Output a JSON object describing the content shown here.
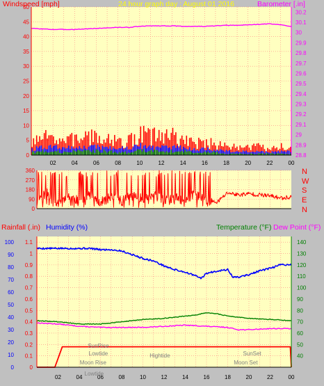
{
  "chart_data": [
    {
      "type": "line",
      "panel": "wind_barometer",
      "title": "24 hour graph day : August 01 2016",
      "left_axis_label": "Windspeed [mph]",
      "right_axis_label": "Barometer [.in]",
      "x_ticks": [
        "02",
        "04",
        "06",
        "08",
        "10",
        "12",
        "14",
        "16",
        "18",
        "20",
        "22",
        "00"
      ],
      "x_range_hours": [
        0,
        24
      ],
      "left_ylim": [
        0,
        50
      ],
      "left_ticks": [
        0,
        5,
        10,
        15,
        20,
        25,
        30,
        35,
        40,
        45,
        50
      ],
      "right_ylim": [
        28.8,
        30.25
      ],
      "right_ticks": [
        "28.8",
        "28.9",
        "29",
        "29.1",
        "29.2",
        "29.3",
        "29.4",
        "29.5",
        "29.6",
        "29.7",
        "29.8",
        "29.9",
        "30",
        "30.1",
        "30.2"
      ],
      "grid": true,
      "colors": {
        "barometer": "#ff00ff",
        "gust": "#ff0000",
        "average": "#0000ff",
        "low": "#008000",
        "plot_bg": "#ffffc0"
      },
      "series": [
        {
          "key": "barometer",
          "axis": "right",
          "x": [
            0,
            1,
            2,
            3,
            4,
            5,
            6,
            7,
            8,
            9,
            10,
            11,
            12,
            13,
            14,
            15,
            16,
            17,
            18,
            19,
            20,
            21,
            22,
            23,
            24
          ],
          "values": [
            30.04,
            30.035,
            30.03,
            30.03,
            30.03,
            30.035,
            30.04,
            30.045,
            30.05,
            30.05,
            30.06,
            30.065,
            30.065,
            30.065,
            30.06,
            30.06,
            30.06,
            30.065,
            30.07,
            30.07,
            30.075,
            30.08,
            30.085,
            30.075,
            30.06
          ]
        },
        {
          "key": "gust",
          "axis": "left",
          "x": [
            0,
            1,
            2,
            3,
            4,
            5,
            6,
            7,
            8,
            9,
            10,
            11,
            12,
            13,
            14,
            15,
            16,
            17,
            18,
            19,
            20,
            21,
            22,
            23,
            24
          ],
          "values": [
            4,
            6,
            7,
            5,
            6,
            7,
            6,
            7,
            5,
            5,
            8,
            7,
            7,
            7,
            6,
            4,
            5,
            4,
            3,
            3,
            3,
            3,
            2,
            3,
            3
          ]
        },
        {
          "key": "average",
          "axis": "left",
          "x": [
            0,
            1,
            2,
            3,
            4,
            5,
            6,
            7,
            8,
            9,
            10,
            11,
            12,
            13,
            14,
            15,
            16,
            17,
            18,
            19,
            20,
            21,
            22,
            23,
            24
          ],
          "values": [
            2,
            3,
            3,
            2.5,
            3,
            3,
            3,
            3,
            2.5,
            2.5,
            3.5,
            3,
            3,
            3,
            3,
            2,
            2.5,
            2,
            1.5,
            1.5,
            1.5,
            1.5,
            1,
            1.5,
            1.5
          ]
        },
        {
          "key": "low",
          "axis": "left",
          "x": [
            0,
            1,
            2,
            3,
            4,
            5,
            6,
            7,
            8,
            9,
            10,
            11,
            12,
            13,
            14,
            15,
            16,
            17,
            18,
            19,
            20,
            21,
            22,
            23,
            24
          ],
          "values": [
            1,
            1.5,
            1.5,
            1,
            1.5,
            1.5,
            1.5,
            1.5,
            1,
            1,
            2,
            1.5,
            1.5,
            1.5,
            1.5,
            1,
            1,
            1,
            0.5,
            0.5,
            0.5,
            0.5,
            0.5,
            0.5,
            0.5
          ]
        }
      ]
    },
    {
      "type": "line",
      "panel": "wind_direction",
      "left_ticks": [
        0,
        90,
        180,
        270,
        360
      ],
      "ylim": [
        0,
        360
      ],
      "direction_labels": [
        "N",
        "W",
        "S",
        "E",
        "N"
      ],
      "grid": true,
      "series": [
        {
          "key": "direction",
          "x": [
            0,
            1,
            2,
            3,
            4,
            5,
            6,
            7,
            8,
            9,
            10,
            11,
            12,
            13,
            14,
            15,
            16,
            17,
            18,
            19,
            20,
            21,
            22,
            23,
            24
          ],
          "values": [
            90,
            150,
            60,
            120,
            70,
            130,
            60,
            110,
            80,
            120,
            90,
            130,
            80,
            100,
            90,
            140,
            70,
            60,
            150,
            130,
            140,
            130,
            120,
            100,
            110
          ]
        }
      ]
    },
    {
      "type": "line",
      "panel": "rain_humidity_temperature",
      "rain_axis_label": "Rainfall (.in)",
      "humidity_axis_label": "Humidity (%)",
      "temperature_axis_label": "Temperature (°F)",
      "dewpoint_axis_label": "Dew Point (°F)",
      "x_ticks": [
        "02",
        "04",
        "06",
        "08",
        "10",
        "12",
        "14",
        "16",
        "18",
        "20",
        "22",
        "00"
      ],
      "humidity_ticks": [
        0,
        10,
        20,
        30,
        40,
        50,
        60,
        70,
        80,
        90,
        100
      ],
      "rain_ticks": [
        "0",
        "0.1",
        "0.2",
        "0.3",
        "0.4",
        "0.5",
        "0.6",
        "0.7",
        "0.8",
        "0.9",
        "1",
        "1.1"
      ],
      "rain_ylim": [
        0,
        1.15
      ],
      "temperature_ticks": [
        40,
        50,
        60,
        70,
        80,
        90,
        100,
        110,
        120,
        130,
        140
      ],
      "temperature_ylim": [
        30,
        145
      ],
      "grid": true,
      "colors": {
        "humidity": "#0000ff",
        "temperature": "#008000",
        "dewpoint": "#ff00ff",
        "rain": "#ff0000"
      },
      "series": [
        {
          "key": "humidity",
          "axis": "humidity",
          "x": [
            0,
            1,
            2,
            3,
            4,
            5,
            6,
            7,
            8,
            9,
            10,
            11,
            12,
            13,
            14,
            15,
            15.5,
            16,
            17,
            18,
            18.5,
            19,
            20,
            21,
            22,
            23,
            24
          ],
          "values": [
            95,
            95,
            95,
            95,
            95,
            95,
            94,
            94,
            93,
            90,
            87,
            85,
            81,
            78,
            76,
            73,
            71,
            75,
            77,
            78,
            72,
            72,
            74,
            77,
            79,
            82,
            82
          ]
        },
        {
          "key": "temperature",
          "axis": "temperature",
          "x": [
            0,
            2,
            4,
            6,
            8,
            10,
            12,
            14,
            15,
            16,
            17,
            18,
            20,
            22,
            24
          ],
          "values": [
            71,
            70,
            68,
            68,
            70,
            72,
            73,
            75,
            76,
            78,
            77,
            75,
            73,
            72,
            71
          ]
        },
        {
          "key": "dewpoint",
          "axis": "temperature",
          "x": [
            0,
            2,
            4,
            6,
            8,
            10,
            12,
            14,
            16,
            18,
            19,
            20,
            22,
            24
          ],
          "values": [
            69,
            68,
            66,
            65,
            65,
            65,
            66,
            67,
            66,
            65,
            63,
            63,
            64,
            64
          ]
        },
        {
          "key": "rain",
          "axis": "rain",
          "x": [
            0,
            1.7,
            2.4,
            4,
            8,
            12,
            16,
            20,
            23.9,
            24
          ],
          "values": [
            0,
            0,
            0.18,
            0.18,
            0.18,
            0.18,
            0.18,
            0.18,
            0.18,
            0
          ]
        }
      ],
      "annotations": [
        {
          "label": "SunRise",
          "x": 5.8,
          "level": 4
        },
        {
          "label": "Lowtide",
          "x": 5.8,
          "level": 3
        },
        {
          "label": "Moon Rise",
          "x": 5.3,
          "level": 1
        },
        {
          "label": "Lowtide",
          "x": 5.4,
          "level": 0
        },
        {
          "label": "Hightide",
          "x": 11.6,
          "level": 2
        },
        {
          "label": "SunSet",
          "x": 20.3,
          "level": 3
        },
        {
          "label": "Moon Set",
          "x": 19.7,
          "level": 1
        }
      ]
    }
  ]
}
